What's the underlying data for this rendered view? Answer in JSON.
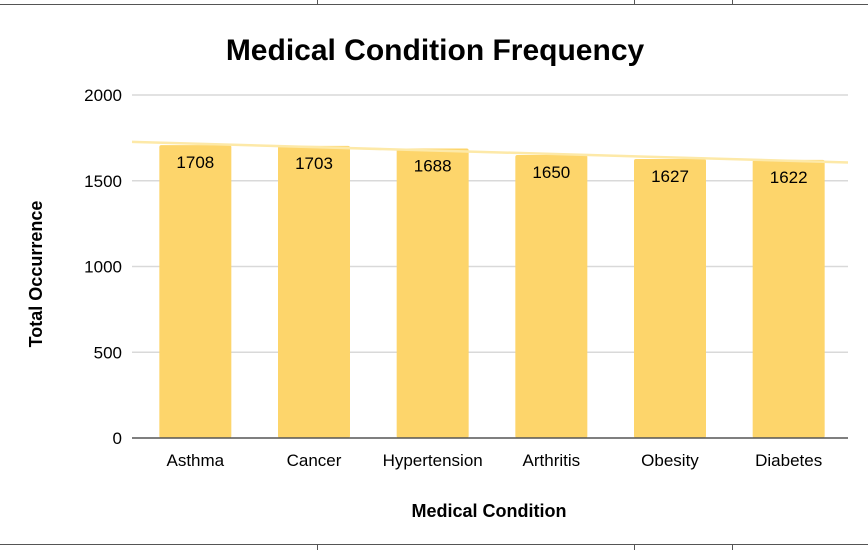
{
  "chart_data": {
    "type": "bar",
    "title": "Medical Condition Frequency",
    "xlabel": "Medical Condition",
    "ylabel": "Total Occurrence",
    "categories": [
      "Asthma",
      "Cancer",
      "Hypertension",
      "Arthritis",
      "Obesity",
      "Diabetes"
    ],
    "values": [
      1708,
      1703,
      1688,
      1650,
      1627,
      1622
    ],
    "data_labels": [
      "1708",
      "1703",
      "1688",
      "1650",
      "1627",
      "1622"
    ],
    "ylim": [
      0,
      2000
    ],
    "yticks": [
      0,
      500,
      1000,
      1500,
      2000
    ],
    "ytick_labels": [
      "0",
      "500",
      "1000",
      "1500",
      "2000"
    ],
    "grid": true,
    "trendline": "linear",
    "colors": {
      "bar": "#fdd56b",
      "trendline": "#fde9a8",
      "grid": "#d9d9d9",
      "axis": "#555555",
      "text": "#000000"
    }
  }
}
